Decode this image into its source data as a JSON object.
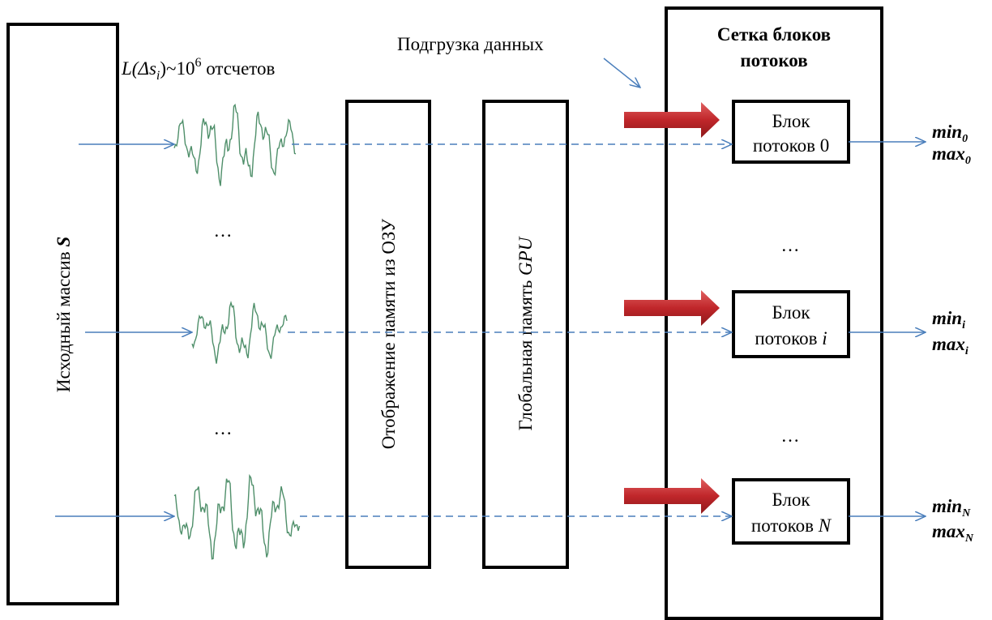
{
  "source_array": {
    "label": "Исходный массив",
    "var": "S"
  },
  "sample_count": {
    "func": "L(Δs",
    "sub": "i",
    "close": ")~10",
    "sup": "6",
    "unit": "отсчетов"
  },
  "data_loading": "Подгрузка данных",
  "ram_mapping": "Отображение памяти из ОЗУ",
  "gpu_memory": {
    "label": "Глобальная память",
    "var": "GPU"
  },
  "grid": {
    "title_lines": [
      "Сетка блоков",
      "потоков"
    ]
  },
  "blocks": [
    {
      "line1": "Блок",
      "line2": "потоков",
      "index": "0",
      "min": "min",
      "min_sub": "0",
      "max": "max",
      "max_sub": "0"
    },
    {
      "line1": "Блок",
      "line2": "потоков",
      "index": "i",
      "min": "min",
      "min_sub": "i",
      "max": "max",
      "max_sub": "i"
    },
    {
      "line1": "Блок",
      "line2": "потоков",
      "index": "N",
      "min": "min",
      "min_sub": "N",
      "max": "max",
      "max_sub": "N"
    }
  ],
  "ellipses": [
    "…",
    "…",
    "…",
    "…"
  ]
}
